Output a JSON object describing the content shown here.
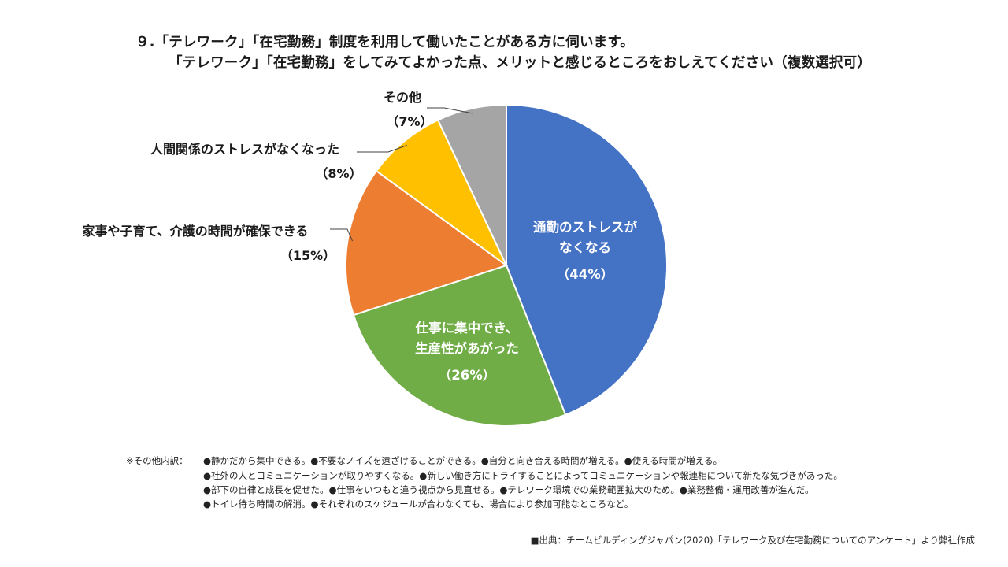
{
  "title": {
    "line1": "９.「テレワーク」「在宅勤務」制度を利用して働いたことがある方に伺います。",
    "line2": "「テレワーク」「在宅勤務」をしてみてよかった点、メリットと感じるところをおしえてください（複数選択可）"
  },
  "chart_data": {
    "type": "pie",
    "title": "「テレワーク」「在宅勤務」をしてみてよかった点、メリットと感じるところ",
    "slices": [
      {
        "label_lines": [
          "通勤のストレスが",
          "なくなる"
        ],
        "value": 44,
        "pct_text": "（44%）",
        "color": "#4472C4"
      },
      {
        "label_lines": [
          "仕事に集中でき、",
          "生産性があがった"
        ],
        "value": 26,
        "pct_text": "（26%）",
        "color": "#70AD47"
      },
      {
        "label_lines": [
          "家事や子育て、介護の時間が確保できる"
        ],
        "value": 15,
        "pct_text": "（15%）",
        "color": "#ED7D31"
      },
      {
        "label_lines": [
          "人間関係のストレスがなくなった"
        ],
        "value": 8,
        "pct_text": "（8%）",
        "color": "#FFC000"
      },
      {
        "label_lines": [
          "その他"
        ],
        "value": 7,
        "pct_text": "（7%）",
        "color": "#A5A5A5"
      }
    ],
    "legend": "none"
  },
  "notes": {
    "prefix": "※その他内訳：",
    "line1": "●静かだから集中できる。●不要なノイズを遠ざけることができる。●自分と向き合える時間が増える。●使える時間が増える。",
    "line2": "●社外の人とコミュニケーションが取りやすくなる。●新しい働き方にトライすることによってコミュニケーションや報連相について新たな気づきがあった。",
    "line3": "●部下の自律と成長を促せた。●仕事をいつもと違う視点から見直せる。●テレワーク環境での業務範囲拡大のため。●業務整備・運用改善が進んだ。",
    "line4": "●トイレ待ち時間の解消。●それぞれのスケジュールが合わなくても、場合により参加可能なところなど。"
  },
  "source": "■出典：チームビルディングジャパン(2020)「テレワーク及び在宅勤務についてのアンケート」より弊社作成"
}
